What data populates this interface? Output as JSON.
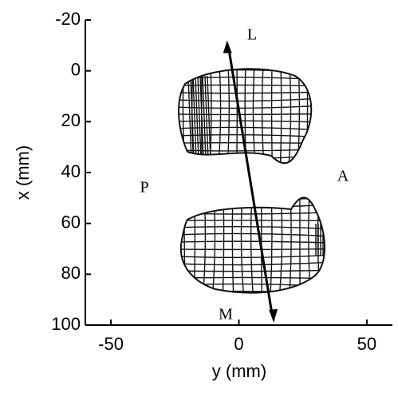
{
  "chart_data": {
    "type": "mesh-plot",
    "x_label": "y (mm)",
    "y_label": "x (mm)",
    "xlim": [
      -60,
      60
    ],
    "xticks": [
      -50,
      0,
      50
    ],
    "ylim": [
      100,
      -20
    ],
    "yticks": [
      -20,
      0,
      20,
      40,
      60,
      80,
      100
    ],
    "annotations": [
      "L",
      "P",
      "A",
      "M"
    ]
  }
}
